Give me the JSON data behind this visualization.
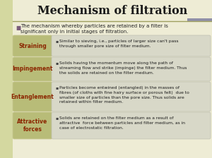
{
  "title": "Mechanism of filtration",
  "bg_color": "#eeecd5",
  "left_panel_color": "#d4d8a0",
  "title_color": "#1a1a1a",
  "header_text_color": "#222222",
  "header_bullet_color": "#7a5c7a",
  "label_bg_color": "#b8bc78",
  "label_text_color": "#8b2500",
  "desc_bg_color": "#d8d8c8",
  "desc_text_color": "#1a1a1a",
  "divider_color": "#a0a060",
  "header_text": "The mechanism whereby particles are retained by a filter is\nsignificant only in initial stages of filtration.",
  "rows": [
    {
      "label": "Straining",
      "desc": "Similar to sieving, i.e., particles of larger size can't pass\nthrough smaller pore size of filter medium."
    },
    {
      "label": "Impingement",
      "desc": "Solids having the momentum move along the path of\nstreaming flow and strike (impinge) the filter medium. Thus\nthe solids are retained on the filter medium."
    },
    {
      "label": "Entanglement",
      "desc": "Particles become entwined (entangled) in the masses of\nfibres (of cloths with fine hairy surface or porous felt)  due to\nsmaller size of particles than the pore size. Thus solids are\nretained within filter medium."
    },
    {
      "label": "Attractive\nforces",
      "desc": "Solids are retained on the filter medium as a result of\nattractive  force between particles and filter medium, as in\ncase of electrostatic filtration."
    }
  ]
}
